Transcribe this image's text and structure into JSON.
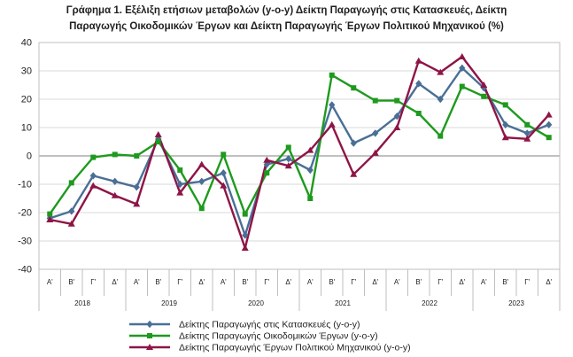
{
  "chart_data": {
    "type": "line",
    "title_line1": "Γράφημα 1. Εξέλιξη ετήσιων μεταβολών (y-o-y) Δείκτη Παραγωγής στις Κατασκευές, Δείκτη",
    "title_line2": "Παραγωγής Οικοδομικών Έργων και  Δείκτη Παραγωγής  Έργων Πολιτικού Μηχανικού (%)",
    "ylim": [
      -40,
      40
    ],
    "yticks": [
      -40,
      -30,
      -20,
      -10,
      0,
      10,
      20,
      30,
      40
    ],
    "quarters": [
      "Α'",
      "Β'",
      "Γ'",
      "Δ'",
      "Α'",
      "Β'",
      "Γ'",
      "Δ'",
      "Α'",
      "Β'",
      "Γ'",
      "Δ'",
      "Α'",
      "Β'",
      "Γ'",
      "Δ'",
      "Α'",
      "Β'",
      "Γ'",
      "Δ'",
      "Α'",
      "Β'",
      "Γ'",
      "Δ'"
    ],
    "years": [
      "2018",
      "2019",
      "2020",
      "2021",
      "2022",
      "2023"
    ],
    "grid": true,
    "legend_position": "bottom",
    "series": [
      {
        "name": "Δείκτης Παραγωγής στις Κατασκευές (y-o-y)",
        "color": "#4a6f96",
        "marker": "diamond",
        "values": [
          -22,
          -19.5,
          -7,
          -9,
          -11,
          6,
          -10,
          -9,
          -6,
          -28,
          -3,
          -1,
          -5,
          18,
          4.5,
          8,
          14,
          25.5,
          20,
          31,
          24,
          11,
          8,
          11
        ]
      },
      {
        "name": "Δείκτης Παραγωγής Οικοδομικών Έργων (y-o-y)",
        "color": "#1e9a1e",
        "marker": "square",
        "values": [
          -20.5,
          -9.5,
          -0.5,
          0.5,
          0,
          5,
          -5,
          -18.5,
          0.5,
          -20.5,
          -6,
          3,
          -15,
          28.5,
          24,
          19.5,
          19.5,
          15,
          7,
          24.5,
          21,
          18,
          11,
          6.5
        ]
      },
      {
        "name": "Δείκτης Παραγωγής Έργων Πολιτικού Μηχανικού (y-o-y)",
        "color": "#8e1446",
        "marker": "triangle",
        "values": [
          -22.5,
          -24,
          -10.5,
          -14,
          -17,
          7.5,
          -13,
          -3,
          -10.5,
          -32.5,
          -1.5,
          -3.5,
          2,
          11,
          -6.5,
          1,
          10,
          33.5,
          29.5,
          35,
          25,
          6.5,
          6,
          14.5
        ]
      }
    ]
  }
}
